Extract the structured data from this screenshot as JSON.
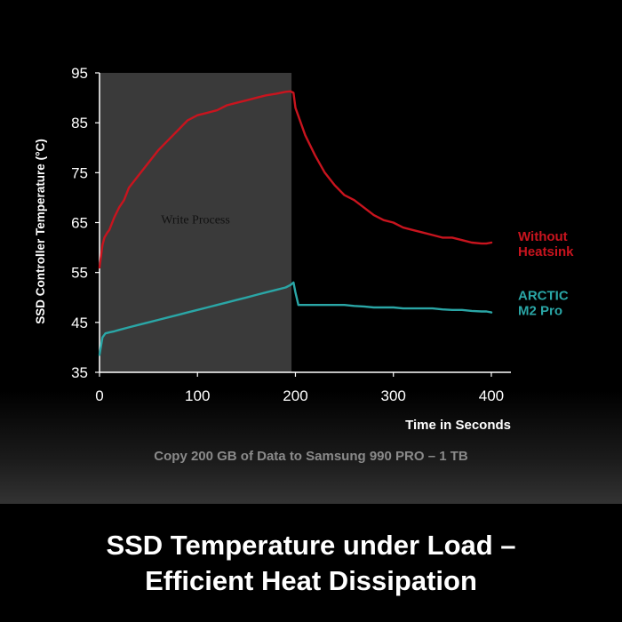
{
  "chart_data": {
    "type": "line",
    "title": "SSD Temperature under Load – Efficient Heat Dissipation",
    "title_line1": "SSD Temperature under Load –",
    "title_line2": "Efficient Heat Dissipation",
    "subtitle": "Copy 200 GB of Data to Samsung 990 PRO  – 1 TB",
    "xlabel": "Time in Seconds",
    "ylabel": "SSD Controller Temperature (°C)",
    "xlim": [
      0,
      420
    ],
    "ylim": [
      35,
      95
    ],
    "xticks": [
      0,
      100,
      200,
      300,
      400
    ],
    "yticks": [
      35,
      45,
      55,
      65,
      75,
      85,
      95
    ],
    "grid": false,
    "legend_position": "right, inline labels",
    "shaded_region": {
      "label": "Write Process",
      "x_start": 0,
      "x_end": 196
    },
    "series": [
      {
        "name": "Without Heatsink",
        "label_lines": [
          "Without",
          "Heatsink"
        ],
        "color": "#c8141e",
        "x": [
          0,
          3,
          5,
          8,
          10,
          15,
          20,
          25,
          30,
          40,
          50,
          60,
          70,
          80,
          90,
          100,
          110,
          120,
          130,
          140,
          150,
          160,
          170,
          180,
          190,
          195,
          198,
          200,
          210,
          220,
          230,
          240,
          250,
          260,
          270,
          280,
          290,
          300,
          310,
          320,
          330,
          340,
          350,
          360,
          370,
          380,
          390,
          395,
          400
        ],
        "y": [
          56,
          60.5,
          62,
          63,
          63.5,
          66,
          68,
          69.5,
          72,
          74.5,
          77,
          79.5,
          81.5,
          83.5,
          85.5,
          86.5,
          87,
          87.5,
          88.5,
          89,
          89.5,
          90,
          90.5,
          90.8,
          91.2,
          91.3,
          91,
          88,
          82.5,
          78.5,
          75,
          72.5,
          70.5,
          69.5,
          68,
          66.5,
          65.5,
          65,
          64,
          63.5,
          63,
          62.5,
          62,
          62,
          61.5,
          61,
          60.8,
          60.8,
          61
        ]
      },
      {
        "name": "ARCTIC M2 Pro",
        "label_lines": [
          "ARCTIC",
          "M2 Pro"
        ],
        "color": "#2aa6a6",
        "x": [
          0,
          3,
          6,
          10,
          15,
          20,
          30,
          40,
          50,
          60,
          70,
          80,
          90,
          100,
          110,
          120,
          130,
          140,
          150,
          160,
          170,
          180,
          190,
          195,
          198,
          200,
          203,
          210,
          220,
          230,
          240,
          250,
          260,
          270,
          280,
          290,
          300,
          310,
          320,
          330,
          340,
          350,
          360,
          370,
          380,
          390,
          395,
          400
        ],
        "y": [
          38.5,
          42,
          42.8,
          43,
          43.2,
          43.5,
          44,
          44.5,
          45,
          45.5,
          46,
          46.5,
          47,
          47.5,
          48,
          48.5,
          49,
          49.5,
          50,
          50.5,
          51,
          51.5,
          52,
          52.5,
          53,
          51,
          48.5,
          48.5,
          48.5,
          48.5,
          48.5,
          48.5,
          48.3,
          48.2,
          48,
          48,
          48,
          47.8,
          47.8,
          47.8,
          47.8,
          47.6,
          47.5,
          47.5,
          47.3,
          47.2,
          47.2,
          47
        ]
      }
    ]
  }
}
